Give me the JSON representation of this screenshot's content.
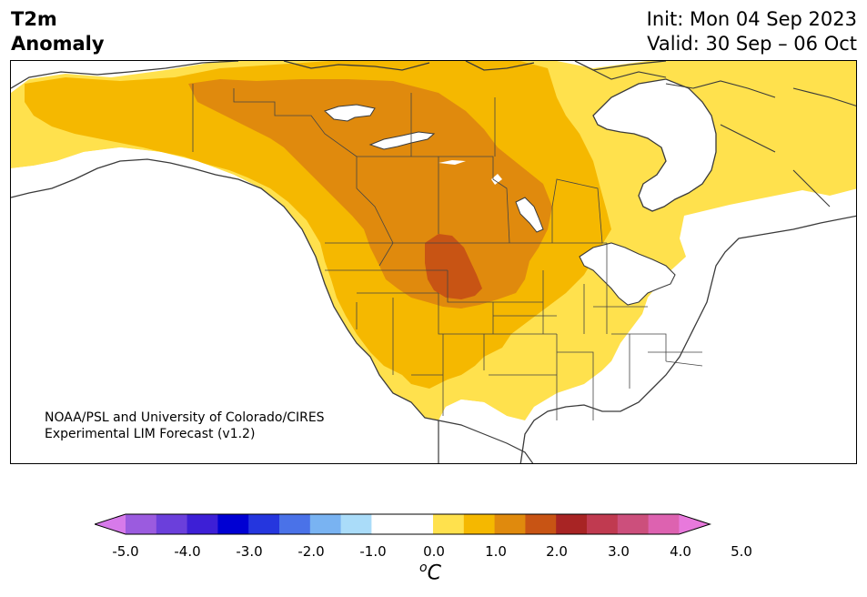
{
  "header": {
    "title_line1": "T2m",
    "title_line2": "Anomaly",
    "init_label": "Init: Mon 04 Sep 2023",
    "valid_label": "Valid: 30 Sep – 06 Oct"
  },
  "credit": {
    "line1": "NOAA/PSL and University of Colorado/CIRES",
    "line2": "Experimental LIM Forecast (v1.2)"
  },
  "colorbar": {
    "units_base": "C",
    "units_sup": "o",
    "tick_labels": [
      "-5.0",
      "-4.0",
      "-3.0",
      "-2.0",
      "-1.0",
      "0.0",
      "1.0",
      "2.0",
      "3.0",
      "4.0",
      "5.0"
    ],
    "under_color": "#d77aea",
    "over_color": "#e879dc",
    "colors": [
      "#9b5bdf",
      "#6b3fdb",
      "#3d1fd6",
      "#0000d3",
      "#2536de",
      "#4a72e8",
      "#79b3f2",
      "#aadcf9",
      "#ffffff",
      "#ffffff",
      "#ffe14d",
      "#f5b800",
      "#e08a0d",
      "#c85414",
      "#a82424",
      "#c03a50",
      "#cc4f7c",
      "#dd62b0"
    ]
  },
  "map": {
    "region": "North America",
    "anomaly_colors": {
      "level_0_5": "#ffe14d",
      "level_1_0": "#f5b800",
      "level_1_5": "#e08a0d",
      "level_2_0": "#c85414"
    },
    "land_outline_color": "#3a3a3a"
  }
}
